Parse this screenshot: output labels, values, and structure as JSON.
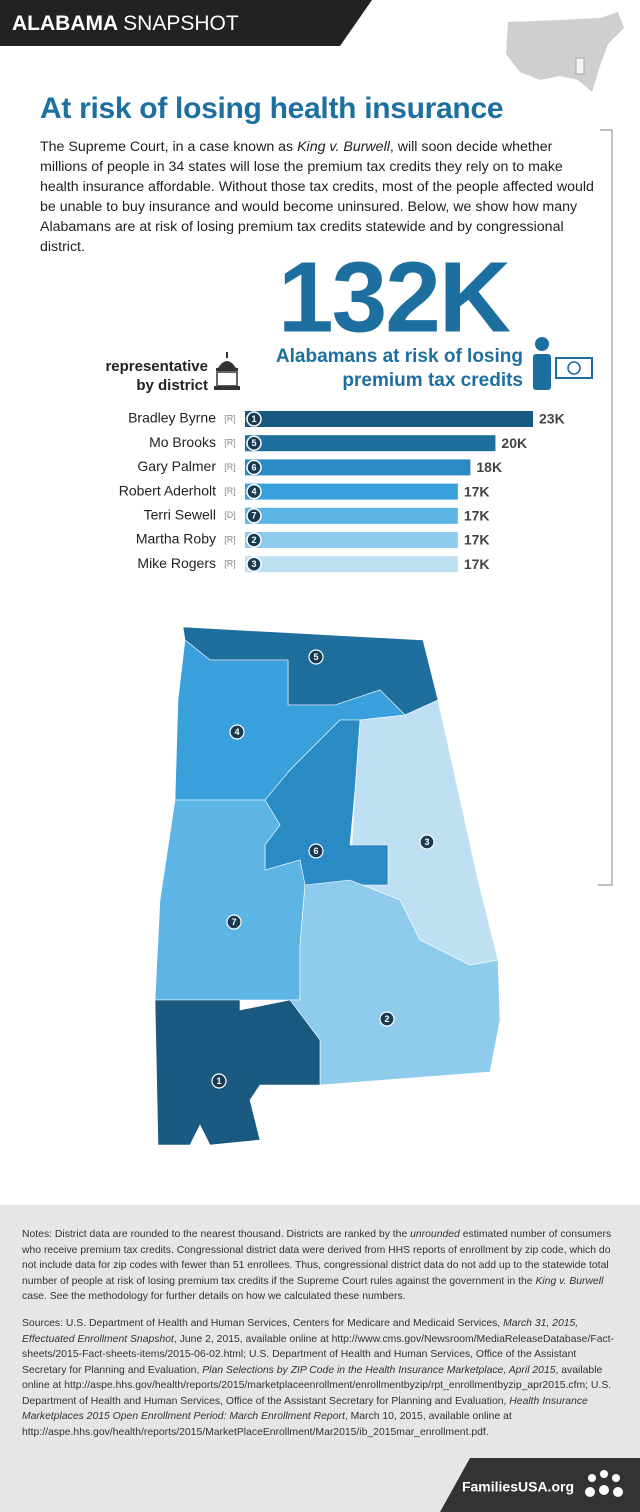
{
  "header": {
    "state": "ALABAMA",
    "label": "SNAPSHOT"
  },
  "title": "At risk of losing health insurance",
  "intro": [
    "The Supreme Court, in a case known as ",
    "King v. Burwell",
    ", will soon decide whether millions of people in 34 states will lose the premium tax credits they rely on to make health insurance affordable. Without those tax credits, most of the people affected would be unable to buy insurance and would become uninsured. Below, we show how many Alabamans are at risk of losing premium tax credits statewide and by congressional district."
  ],
  "headline": {
    "number": "132K",
    "line1": "Alabamans at risk of losing",
    "line2": "premium tax credits"
  },
  "legend_heading": [
    "representative",
    "by district"
  ],
  "chart_data": {
    "type": "bar",
    "orientation": "horizontal",
    "categories": [
      "Bradley Byrne",
      "Mo Brooks",
      "Gary Palmer",
      "Robert Aderholt",
      "Terri Sewell",
      "Martha Roby",
      "Mike Rogers"
    ],
    "parties": [
      "[R]",
      "[R]",
      "[R]",
      "[R]",
      "[D]",
      "[R]",
      "[R]"
    ],
    "districts": [
      "1",
      "5",
      "6",
      "4",
      "7",
      "2",
      "3"
    ],
    "values": [
      23000,
      20000,
      18000,
      17000,
      17000,
      17000,
      17000
    ],
    "value_labels": [
      "23K",
      "20K",
      "18K",
      "17K",
      "17K",
      "17K",
      "17K"
    ],
    "colors": [
      "#1a5a80",
      "#1f6f9e",
      "#2a8ac4",
      "#3aa0db",
      "#5db5e6",
      "#8ecbed",
      "#bfe0f3"
    ],
    "xlim": [
      0,
      23000
    ]
  },
  "map_labels": [
    "5",
    "4",
    "6",
    "3",
    "7",
    "2",
    "1"
  ],
  "notes": [
    "Notes: District data are rounded to the nearest thousand. Districts are ranked by the ",
    "unrounded",
    " estimated number of consumers who receive premium tax credits. Congressional district data were derived from HHS reports of enrollment by zip code, which do not include data for zip codes with fewer than 51 enrollees. Thus, congressional district data do not add up to the statewide total number of people at risk of losing premium tax credits if the Supreme Court rules against the government in the ",
    "King v. Burwell",
    " case. See the methodology for further details on how we calculated these numbers."
  ],
  "sources": [
    "Sources: U.S. Department of Health and Human Services, Centers for Medicare and Medicaid Services, ",
    "March 31, 2015, Effectuated Enrollment Snapshot",
    ", June 2, 2015, available online at http://www.cms.gov/Newsroom/MediaReleaseDatabase/Fact-sheets/2015-Fact-sheets-items/2015-06-02.html; U.S. Department of Health and Human Services, Office of the Assistant Secretary for Planning and Evaluation, ",
    "Plan Selections by ZIP Code in the Health Insurance Marketplace, April 2015",
    ", available online at http://aspe.hhs.gov/health/reports/2015/marketplaceenrollment/enrollmentbyzip/rpt_enrollmentbyzip_apr2015.cfm; U.S. Department of Health and Human Services, Office of the Assistant Secretary for Planning and Evaluation, ",
    "Health Insurance Marketplaces 2015 Open Enrollment Period: March Enrollment Report",
    ", March 10, 2015, available online at http://aspe.hhs.gov/health/reports/2015/MarketPlaceEnrollment/Mar2015/ib_2015mar_enrollment.pdf."
  ],
  "footer": "FamiliesUSA.org"
}
